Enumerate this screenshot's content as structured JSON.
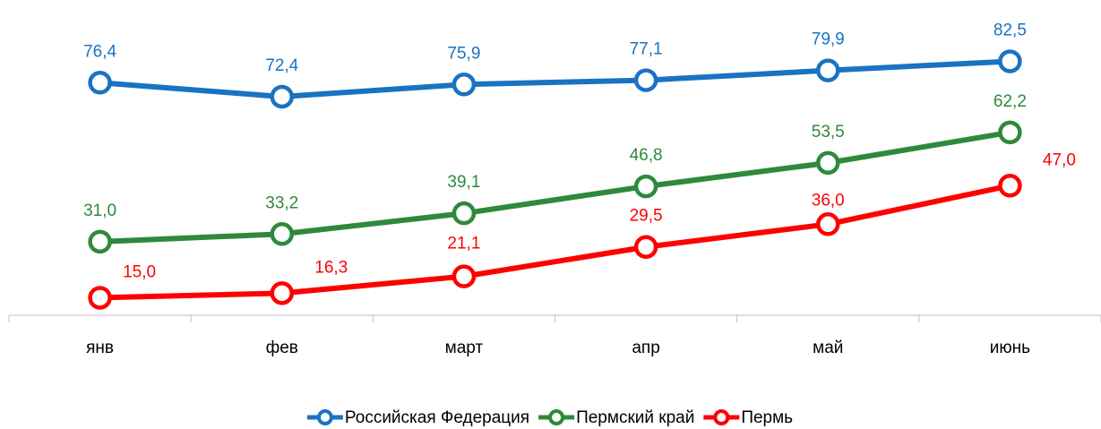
{
  "chart_data": {
    "type": "line",
    "categories": [
      "янв",
      "фев",
      "март",
      "апр",
      "май",
      "июнь"
    ],
    "ylim": [
      10,
      100
    ],
    "legend": "bottom",
    "series": [
      {
        "name": "Российская Федерация",
        "color": "#1a72c2",
        "values": [
          76.4,
          72.4,
          75.9,
          77.1,
          79.9,
          82.5
        ],
        "value_labels": [
          "76,4",
          "72,4",
          "75,9",
          "77,1",
          "79,9",
          "82,5"
        ]
      },
      {
        "name": "Пермский край",
        "color": "#2e8a3a",
        "values": [
          31.0,
          33.2,
          39.1,
          46.8,
          53.5,
          62.2
        ],
        "value_labels": [
          "31,0",
          "33,2",
          "39,1",
          "46,8",
          "53,5",
          "62,2"
        ]
      },
      {
        "name": "Пермь",
        "color": "#ff0000",
        "values": [
          15.0,
          16.3,
          21.1,
          29.5,
          36.0,
          47.0
        ],
        "value_labels": [
          "15,0",
          "16,3",
          "21,1",
          "29,5",
          "36,0",
          "47,0"
        ]
      }
    ]
  }
}
